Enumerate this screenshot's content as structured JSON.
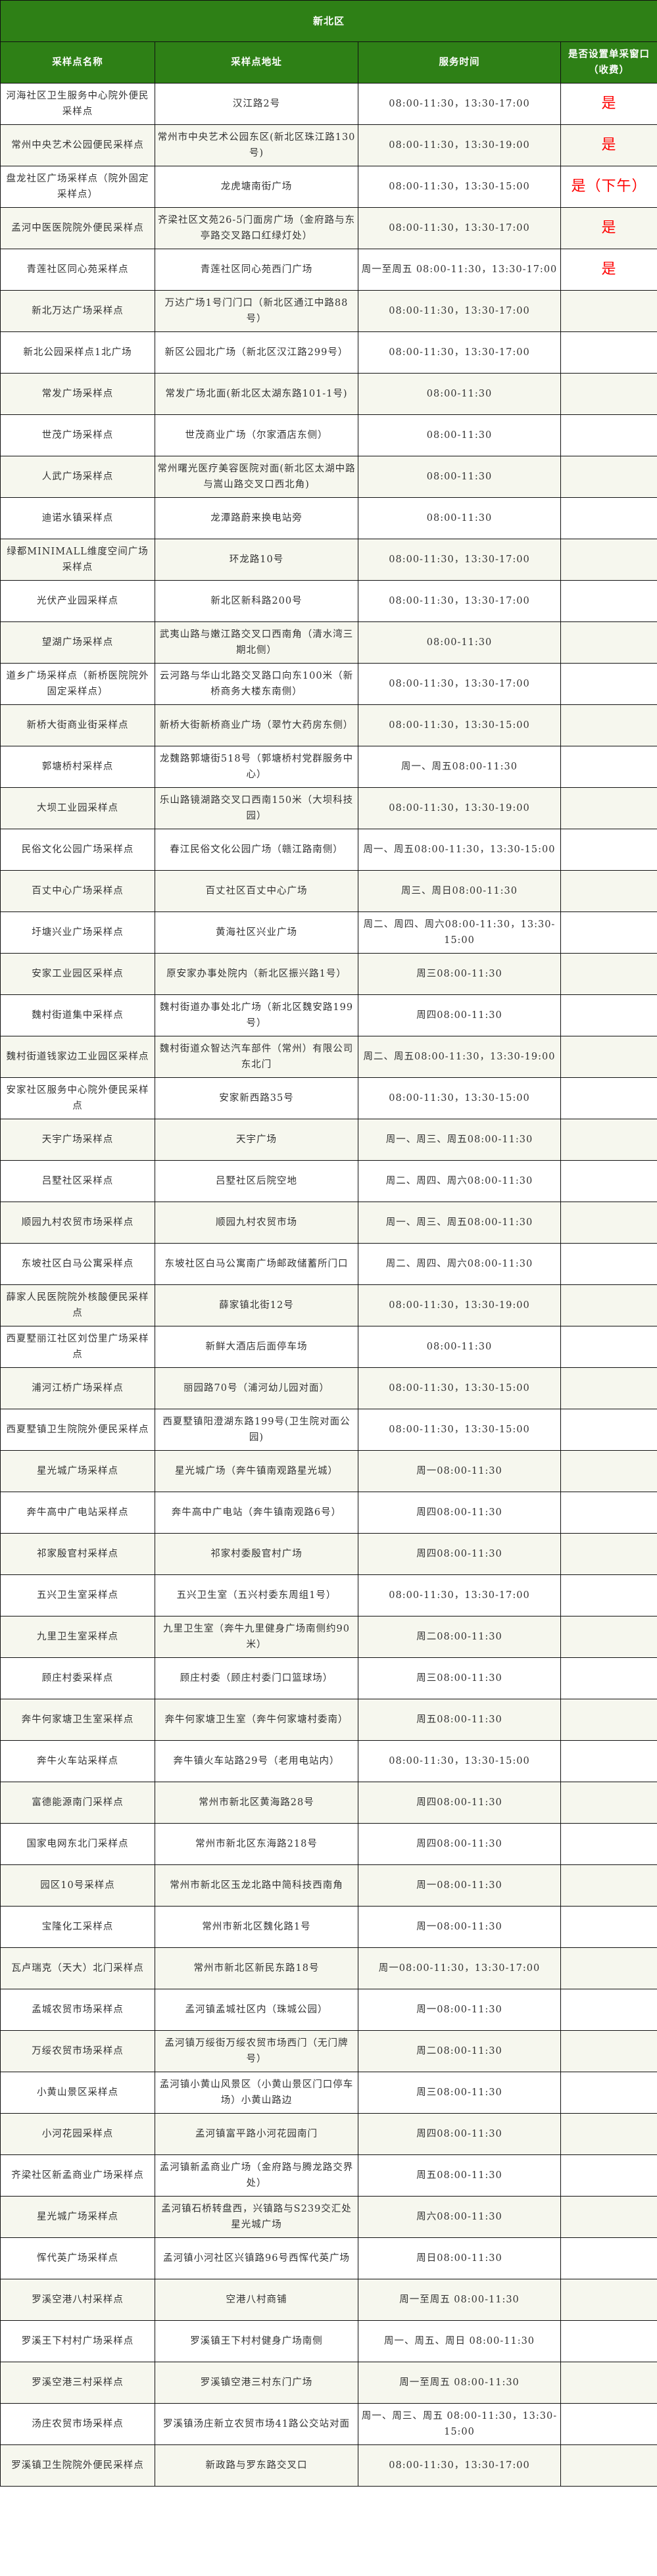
{
  "title": "新北区",
  "columns": [
    "采样点名称",
    "采样点地址",
    "服务时间",
    "是否设置单采窗口（收费）"
  ],
  "accent_color": "#2e8016",
  "flag_color": "#ff0000",
  "rows": [
    {
      "name": "河海社区卫生服务中心院外便民采样点",
      "address": "汉江路2号",
      "hours": "08:00-11:30，13:30-17:00",
      "single": "是"
    },
    {
      "name": "常州中央艺术公园便民采样点",
      "address": "常州市中央艺术公园东区(新北区珠江路130号)",
      "hours": "08:00-11:30，13:30-19:00",
      "single": "是"
    },
    {
      "name": "盘龙社区广场采样点（院外固定采样点）",
      "address": "龙虎塘南街广场",
      "hours": "08:00-11:30，13:30-15:00",
      "single": "是（下午）"
    },
    {
      "name": "孟河中医医院院外便民采样点",
      "address": "齐梁社区文苑26-5门面房广场（金府路与东亭路交叉路口红绿灯处）",
      "hours": "08:00-11:30，13:30-17:00",
      "single": "是"
    },
    {
      "name": "青莲社区同心苑采样点",
      "address": "青莲社区同心苑西门广场",
      "hours": "周一至周五 08:00-11:30，13:30-17:00",
      "single": "是"
    },
    {
      "name": "新北万达广场采样点",
      "address": "万达广场1号门门口（新北区通江中路88号）",
      "hours": "08:00-11:30，13:30-17:00",
      "single": ""
    },
    {
      "name": "新北公园采样点1北广场",
      "address": "新区公园北广场（新北区汉江路299号）",
      "hours": "08:00-11:30，13:30-17:00",
      "single": ""
    },
    {
      "name": "常发广场采样点",
      "address": "常发广场北面(新北区太湖东路101-1号)",
      "hours": "08:00-11:30",
      "single": ""
    },
    {
      "name": "世茂广场采样点",
      "address": "世茂商业广场（尔家酒店东侧）",
      "hours": "08:00-11:30",
      "single": ""
    },
    {
      "name": "人武广场采样点",
      "address": "常州曙光医疗美容医院对面(新北区太湖中路与嵩山路交叉口西北角)",
      "hours": "08:00-11:30",
      "single": ""
    },
    {
      "name": "迪诺水镇采样点",
      "address": "龙潭路蔚来换电站旁",
      "hours": "08:00-11:30",
      "single": ""
    },
    {
      "name": "绿都MINIMALL维度空间广场采样点",
      "address": "环龙路10号",
      "hours": "08:00-11:30，13:30-17:00",
      "single": ""
    },
    {
      "name": "光伏产业园采样点",
      "address": "新北区新科路200号",
      "hours": "08:00-11:30，13:30-17:00",
      "single": ""
    },
    {
      "name": "望湖广场采样点",
      "address": "武夷山路与嫩江路交叉口西南角（清水湾三期北侧）",
      "hours": "08:00-11:30",
      "single": ""
    },
    {
      "name": "道乡广场采样点（新桥医院院外固定采样点）",
      "address": "云河路与华山北路交叉路口向东100米（新桥商务大楼东南侧）",
      "hours": "08:00-11:30，13:30-17:00",
      "single": ""
    },
    {
      "name": "新桥大街商业街采样点",
      "address": "新桥大街新桥商业广场（翠竹大药房东侧）",
      "hours": "08:00-11:30，13:30-15:00",
      "single": ""
    },
    {
      "name": "郭塘桥村采样点",
      "address": "龙魏路郭塘街518号（郭塘桥村党群服务中心）",
      "hours": "周一、周五08:00-11:30",
      "single": ""
    },
    {
      "name": "大坝工业园采样点",
      "address": "乐山路镜湖路交叉口西南150米（大坝科技园）",
      "hours": "08:00-11:30，13:30-19:00",
      "single": ""
    },
    {
      "name": "民俗文化公园广场采样点",
      "address": "春江民俗文化公园广场（赣江路南侧）",
      "hours": "周一、周五08:00-11:30，13:30-15:00",
      "single": ""
    },
    {
      "name": "百丈中心广场采样点",
      "address": "百丈社区百丈中心广场",
      "hours": "周三、周日08:00-11:30",
      "single": ""
    },
    {
      "name": "圩塘兴业广场采样点",
      "address": "黄海社区兴业广场",
      "hours": "周二、周四、周六08:00-11:30，13:30-15:00",
      "single": ""
    },
    {
      "name": "安家工业园区采样点",
      "address": "原安家办事处院内（新北区振兴路1号）",
      "hours": "周三08:00-11:30",
      "single": ""
    },
    {
      "name": "魏村街道集中采样点",
      "address": "魏村街道办事处北广场（新北区魏安路199号）",
      "hours": "周四08:00-11:30",
      "single": ""
    },
    {
      "name": "魏村街道钱家边工业园区采样点",
      "address": "魏村街道众智达汽车部件（常州）有限公司东北门",
      "hours": "周二、周五08:00-11:30，13:30-19:00",
      "single": ""
    },
    {
      "name": "安家社区服务中心院外便民采样点",
      "address": "安家新西路35号",
      "hours": "08:00-11:30，13:30-15:00",
      "single": ""
    },
    {
      "name": "天宇广场采样点",
      "address": "天宇广场",
      "hours": "周一、周三、周五08:00-11:30",
      "single": ""
    },
    {
      "name": "吕墅社区采样点",
      "address": "吕墅社区后院空地",
      "hours": "周二、周四、周六08:00-11:30",
      "single": ""
    },
    {
      "name": "顺园九村农贸市场采样点",
      "address": "顺园九村农贸市场",
      "hours": "周一、周三、周五08:00-11:30",
      "single": ""
    },
    {
      "name": "东坡社区白马公寓采样点",
      "address": "东坡社区白马公寓南广场邮政储蓄所门口",
      "hours": "周二、周四、周六08:00-11:30",
      "single": ""
    },
    {
      "name": "薛家人民医院院外核酸便民采样点",
      "address": "薛家镇北街12号",
      "hours": "08:00-11:30，13:30-19:00",
      "single": ""
    },
    {
      "name": "西夏墅丽江社区刘岱里广场采样点",
      "address": "新鲜大酒店后面停车场",
      "hours": "08:00-11:30",
      "single": ""
    },
    {
      "name": "浦河江桥广场采样点",
      "address": "丽园路70号（浦河幼儿园对面）",
      "hours": "08:00-11:30，13:30-15:00",
      "single": ""
    },
    {
      "name": "西夏墅镇卫生院院外便民采样点",
      "address": "西夏墅镇阳澄湖东路199号(卫生院对面公园)",
      "hours": "08:00-11:30，13:30-15:00",
      "single": ""
    },
    {
      "name": "星光城广场采样点",
      "address": "星光城广场（奔牛镇南观路星光城）",
      "hours": "周一08:00-11:30",
      "single": ""
    },
    {
      "name": "奔牛高中广电站采样点",
      "address": "奔牛高中广电站（奔牛镇南观路6号）",
      "hours": "周四08:00-11:30",
      "single": ""
    },
    {
      "name": "祁家殷官村采样点",
      "address": "祁家村委殷官村广场",
      "hours": "周四08:00-11:30",
      "single": ""
    },
    {
      "name": "五兴卫生室采样点",
      "address": "五兴卫生室（五兴村委东周组1号）",
      "hours": "08:00-11:30，13:30-17:00",
      "single": ""
    },
    {
      "name": "九里卫生室采样点",
      "address": "九里卫生室（奔牛九里健身广场南侧约90米）",
      "hours": "周二08:00-11:30",
      "single": ""
    },
    {
      "name": "顾庄村委采样点",
      "address": "顾庄村委（顾庄村委门口篮球场）",
      "hours": "周三08:00-11:30",
      "single": ""
    },
    {
      "name": "奔牛何家塘卫生室采样点",
      "address": "奔牛何家塘卫生室（奔牛何家塘村委南）",
      "hours": "周五08:00-11:30",
      "single": ""
    },
    {
      "name": "奔牛火车站采样点",
      "address": "奔牛镇火车站路29号（老用电站内）",
      "hours": "08:00-11:30，13:30-15:00",
      "single": ""
    },
    {
      "name": "富德能源南门采样点",
      "address": "常州市新北区黄海路28号",
      "hours": "周四08:00-11:30",
      "single": ""
    },
    {
      "name": "国家电网东北门采样点",
      "address": "常州市新北区东海路218号",
      "hours": "周四08:00-11:30",
      "single": ""
    },
    {
      "name": "园区10号采样点",
      "address": "常州市新北区玉龙北路中简科技西南角",
      "hours": "周一08:00-11:30",
      "single": ""
    },
    {
      "name": "宝隆化工采样点",
      "address": "常州市新北区魏化路1号",
      "hours": "周一08:00-11:30",
      "single": ""
    },
    {
      "name": "瓦卢瑞克（天大）北门采样点",
      "address": "常州市新北区新民东路18号",
      "hours": "周一08:00-11:30，13:30-17:00",
      "single": ""
    },
    {
      "name": "孟城农贸市场采样点",
      "address": "孟河镇孟城社区内（珠城公园）",
      "hours": "周一08:00-11:30",
      "single": ""
    },
    {
      "name": "万绥农贸市场采样点",
      "address": "孟河镇万绥街万绥农贸市场西门（无门牌号）",
      "hours": "周二08:00-11:30",
      "single": ""
    },
    {
      "name": "小黄山景区采样点",
      "address": "孟河镇小黄山风景区（小黄山景区门口停车场）小黄山路边",
      "hours": "周三08:00-11:30",
      "single": ""
    },
    {
      "name": "小河花园采样点",
      "address": "孟河镇富平路小河花园南门",
      "hours": "周四08:00-11:30",
      "single": ""
    },
    {
      "name": "齐梁社区新孟商业广场采样点",
      "address": "孟河镇新孟商业广场（金府路与腾龙路交界处）",
      "hours": "周五08:00-11:30",
      "single": ""
    },
    {
      "name": "星光城广场采样点",
      "address": "孟河镇石桥转盘西，兴镇路与S239交汇处星光城广场",
      "hours": "周六08:00-11:30",
      "single": ""
    },
    {
      "name": "恽代英广场采样点",
      "address": "孟河镇小河社区兴镇路96号西恽代英广场",
      "hours": "周日08:00-11:30",
      "single": ""
    },
    {
      "name": "罗溪空港八村采样点",
      "address": "空港八村商铺",
      "hours": "周一至周五 08:00-11:30",
      "single": ""
    },
    {
      "name": "罗溪王下村村广场采样点",
      "address": "罗溪镇王下村村健身广场南侧",
      "hours": "周一、周五、周日 08:00-11:30",
      "single": ""
    },
    {
      "name": "罗溪空港三村采样点",
      "address": "罗溪镇空港三村东门广场",
      "hours": "周一至周五 08:00-11:30",
      "single": ""
    },
    {
      "name": "汤庄农贸市场采样点",
      "address": "罗溪镇汤庄新立农贸市场41路公交站对面",
      "hours": "周一、周三、周五 08:00-11:30，13:30-15:00",
      "single": ""
    },
    {
      "name": "罗溪镇卫生院院外便民采样点",
      "address": "新政路与罗东路交叉口",
      "hours": "08:00-11:30，13:30-17:00",
      "single": ""
    }
  ]
}
